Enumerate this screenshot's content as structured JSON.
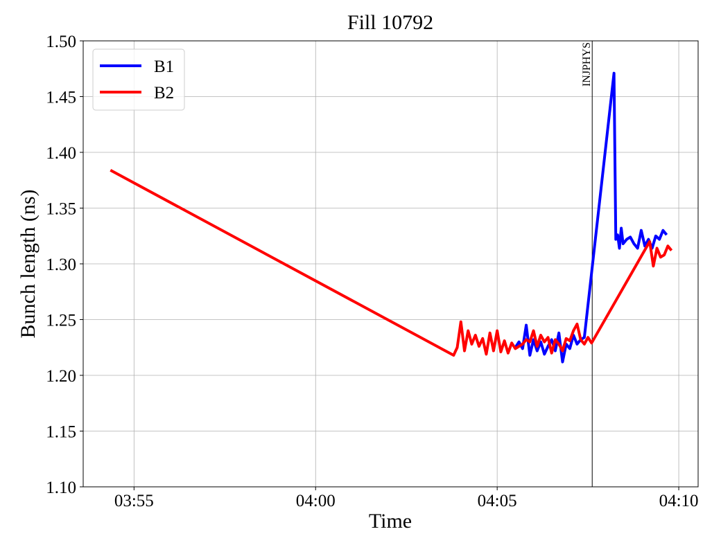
{
  "chart_data": {
    "type": "line",
    "title": "Fill 10792",
    "x_label": "Time",
    "y_label": "Bunch length (ns)",
    "xlim": [
      "03:53:36",
      "04:10:32"
    ],
    "xticks": [
      "03:55",
      "04:00",
      "04:05",
      "04:10"
    ],
    "ylim": [
      1.1,
      1.5
    ],
    "yticks": [
      {
        "value": 1.1,
        "label": "1.10"
      },
      {
        "value": 1.15,
        "label": "1.15"
      },
      {
        "value": 1.2,
        "label": "1.20"
      },
      {
        "value": 1.25,
        "label": "1.25"
      },
      {
        "value": 1.3,
        "label": "1.30"
      },
      {
        "value": 1.35,
        "label": "1.35"
      },
      {
        "value": 1.4,
        "label": "1.40"
      },
      {
        "value": 1.45,
        "label": "1.45"
      },
      {
        "value": 1.5,
        "label": "1.50"
      }
    ],
    "grid": true,
    "legend": "upper left",
    "annotations": [
      {
        "text": "INJPHYS",
        "x": "04:07:37"
      }
    ],
    "series": [
      {
        "name": "B1",
        "color": "#0000ff",
        "x": [
          "04:05:30",
          "04:05:36",
          "04:05:42",
          "04:05:48",
          "04:05:54",
          "04:06:00",
          "04:06:06",
          "04:06:12",
          "04:06:18",
          "04:06:24",
          "04:06:30",
          "04:06:36",
          "04:06:42",
          "04:06:48",
          "04:06:54",
          "04:07:00",
          "04:07:06",
          "04:07:12",
          "04:07:18",
          "04:07:24",
          "04:08:13",
          "04:08:16",
          "04:08:19",
          "04:08:22",
          "04:08:25",
          "04:08:28",
          "04:08:34",
          "04:08:40",
          "04:08:46",
          "04:08:52",
          "04:08:58",
          "04:09:04",
          "04:09:10",
          "04:09:16",
          "04:09:22",
          "04:09:28",
          "04:09:34",
          "04:09:40"
        ],
        "values": [
          1.225,
          1.23,
          1.224,
          1.245,
          1.218,
          1.232,
          1.222,
          1.23,
          1.219,
          1.226,
          1.232,
          1.222,
          1.238,
          1.212,
          1.228,
          1.224,
          1.236,
          1.228,
          1.232,
          1.234,
          1.471,
          1.322,
          1.326,
          1.314,
          1.332,
          1.318,
          1.322,
          1.324,
          1.318,
          1.314,
          1.33,
          1.316,
          1.322,
          1.314,
          1.325,
          1.322,
          1.33,
          1.326
        ]
      },
      {
        "name": "B2",
        "color": "#ff0000",
        "x": [
          "03:54:21",
          "04:03:48",
          "04:03:54",
          "04:04:00",
          "04:04:06",
          "04:04:12",
          "04:04:18",
          "04:04:24",
          "04:04:30",
          "04:04:36",
          "04:04:42",
          "04:04:48",
          "04:04:54",
          "04:05:00",
          "04:05:06",
          "04:05:12",
          "04:05:18",
          "04:05:24",
          "04:05:30",
          "04:05:36",
          "04:05:42",
          "04:05:48",
          "04:05:54",
          "04:06:00",
          "04:06:06",
          "04:06:12",
          "04:06:18",
          "04:06:24",
          "04:06:30",
          "04:06:36",
          "04:06:42",
          "04:06:48",
          "04:06:54",
          "04:07:00",
          "04:07:06",
          "04:07:12",
          "04:07:18",
          "04:07:24",
          "04:07:30",
          "04:07:36",
          "04:09:12",
          "04:09:18",
          "04:09:24",
          "04:09:30",
          "04:09:36",
          "04:09:42",
          "04:09:48"
        ],
        "values": [
          1.384,
          1.218,
          1.225,
          1.248,
          1.222,
          1.24,
          1.228,
          1.236,
          1.226,
          1.233,
          1.219,
          1.238,
          1.222,
          1.24,
          1.221,
          1.231,
          1.22,
          1.229,
          1.224,
          1.226,
          1.228,
          1.232,
          1.23,
          1.24,
          1.226,
          1.236,
          1.23,
          1.234,
          1.22,
          1.232,
          1.228,
          1.222,
          1.233,
          1.231,
          1.24,
          1.246,
          1.232,
          1.228,
          1.234,
          1.229,
          1.32,
          1.298,
          1.314,
          1.306,
          1.308,
          1.316,
          1.312
        ]
      }
    ]
  }
}
